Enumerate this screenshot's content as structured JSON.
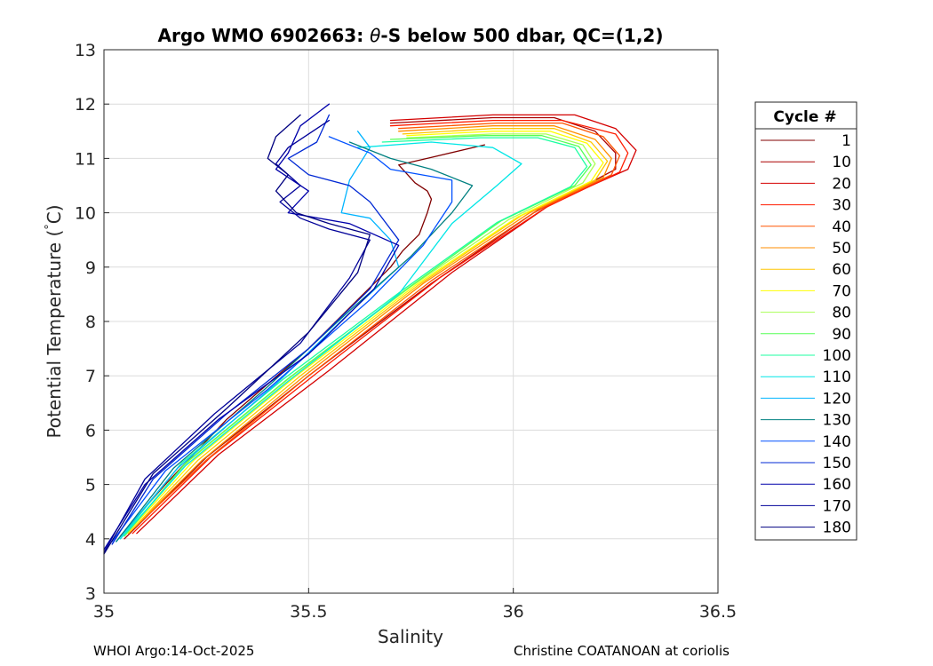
{
  "chart_data": {
    "type": "line",
    "title_prefix": "Argo WMO 6902663: ",
    "title_symbol": "θ",
    "title_suffix": "-S below 500 dbar,  QC=(1,2)",
    "xlabel": "Salinity",
    "ylabel_prefix": "Potential Temperature (",
    "ylabel_degree": "°",
    "ylabel_suffix": "C)",
    "xlim": [
      35,
      36.5
    ],
    "ylim": [
      3,
      13
    ],
    "x_ticks": [
      35,
      35.5,
      36,
      36.5
    ],
    "x_tick_labels": [
      "35",
      "35.5",
      "36",
      "36.5"
    ],
    "y_ticks": [
      3,
      4,
      5,
      6,
      7,
      8,
      9,
      10,
      11,
      12,
      13
    ],
    "y_tick_labels": [
      "3",
      "4",
      "5",
      "6",
      "7",
      "8",
      "9",
      "10",
      "11",
      "12",
      "13"
    ],
    "grid": true,
    "legend": {
      "title": "Cycle #",
      "position": "outside-right",
      "entries": [
        {
          "label": "1",
          "color": "#800000"
        },
        {
          "label": "10",
          "color": "#aa0000"
        },
        {
          "label": "20",
          "color": "#d40000"
        },
        {
          "label": "30",
          "color": "#ff1c00"
        },
        {
          "label": "40",
          "color": "#ff5500"
        },
        {
          "label": "50",
          "color": "#ff8e00"
        },
        {
          "label": "60",
          "color": "#ffc600"
        },
        {
          "label": "70",
          "color": "#ffff00"
        },
        {
          "label": "80",
          "color": "#aaff55"
        },
        {
          "label": "90",
          "color": "#55ff55"
        },
        {
          "label": "100",
          "color": "#1cffa0"
        },
        {
          "label": "110",
          "color": "#00e6e6"
        },
        {
          "label": "120",
          "color": "#00b4ff"
        },
        {
          "label": "130",
          "color": "#008080"
        },
        {
          "label": "140",
          "color": "#0050ff"
        },
        {
          "label": "150",
          "color": "#0028d4"
        },
        {
          "label": "160",
          "color": "#0000aa"
        },
        {
          "label": "170",
          "color": "#000099"
        },
        {
          "label": "180",
          "color": "#000080"
        }
      ]
    },
    "series": [
      {
        "name": "1",
        "color": "#800000",
        "cycle": 1,
        "values": [
          [
            35.93,
            11.25
          ],
          [
            35.8,
            11.02
          ],
          [
            35.72,
            10.88
          ],
          [
            35.76,
            10.55
          ],
          [
            35.79,
            10.4
          ],
          [
            35.8,
            10.25
          ],
          [
            35.79,
            10.0
          ],
          [
            35.77,
            9.6
          ],
          [
            35.73,
            9.3
          ],
          [
            35.7,
            9.0
          ],
          [
            35.62,
            8.4
          ],
          [
            35.5,
            7.5
          ],
          [
            35.3,
            6.2
          ],
          [
            35.15,
            5.0
          ],
          [
            35.04,
            4.05
          ]
        ]
      },
      {
        "name": "10",
        "color": "#aa0000",
        "cycle": 10,
        "values": [
          [
            35.7,
            11.65
          ],
          [
            35.95,
            11.75
          ],
          [
            36.1,
            11.75
          ],
          [
            36.2,
            11.5
          ],
          [
            36.25,
            11.1
          ],
          [
            36.25,
            10.8
          ],
          [
            36.05,
            10.0
          ],
          [
            35.8,
            8.7
          ],
          [
            35.5,
            7.0
          ],
          [
            35.25,
            5.5
          ],
          [
            35.05,
            4.0
          ]
        ]
      },
      {
        "name": "20",
        "color": "#d40000",
        "cycle": 20,
        "values": [
          [
            35.7,
            11.7
          ],
          [
            35.95,
            11.8
          ],
          [
            36.15,
            11.8
          ],
          [
            36.25,
            11.55
          ],
          [
            36.3,
            11.15
          ],
          [
            36.28,
            10.8
          ],
          [
            36.1,
            10.2
          ],
          [
            35.85,
            8.9
          ],
          [
            35.55,
            7.1
          ],
          [
            35.28,
            5.55
          ],
          [
            35.08,
            4.1
          ]
        ]
      },
      {
        "name": "30",
        "color": "#ff1c00",
        "cycle": 30,
        "values": [
          [
            35.7,
            11.6
          ],
          [
            35.95,
            11.7
          ],
          [
            36.12,
            11.7
          ],
          [
            36.25,
            11.45
          ],
          [
            36.28,
            11.1
          ],
          [
            36.26,
            10.75
          ],
          [
            36.08,
            10.1
          ],
          [
            35.82,
            8.8
          ],
          [
            35.52,
            7.05
          ],
          [
            35.26,
            5.5
          ],
          [
            35.07,
            4.1
          ]
        ]
      },
      {
        "name": "40",
        "color": "#ff5500",
        "cycle": 40,
        "values": [
          [
            35.72,
            11.55
          ],
          [
            35.96,
            11.65
          ],
          [
            36.12,
            11.65
          ],
          [
            36.22,
            11.4
          ],
          [
            36.26,
            11.05
          ],
          [
            36.24,
            10.7
          ],
          [
            36.06,
            10.05
          ],
          [
            35.8,
            8.75
          ],
          [
            35.5,
            7.0
          ],
          [
            35.25,
            5.45
          ],
          [
            35.06,
            4.1
          ]
        ]
      },
      {
        "name": "50",
        "color": "#ff8e00",
        "cycle": 50,
        "values": [
          [
            35.72,
            11.5
          ],
          [
            35.95,
            11.6
          ],
          [
            36.1,
            11.6
          ],
          [
            36.2,
            11.35
          ],
          [
            36.24,
            11.0
          ],
          [
            36.22,
            10.65
          ],
          [
            36.04,
            10.0
          ],
          [
            35.78,
            8.7
          ],
          [
            35.49,
            7.0
          ],
          [
            35.24,
            5.45
          ],
          [
            35.06,
            4.1
          ]
        ]
      },
      {
        "name": "60",
        "color": "#ffc600",
        "cycle": 60,
        "values": [
          [
            35.73,
            11.45
          ],
          [
            35.95,
            11.55
          ],
          [
            36.1,
            11.55
          ],
          [
            36.19,
            11.3
          ],
          [
            36.23,
            10.95
          ],
          [
            36.2,
            10.6
          ],
          [
            36.02,
            9.95
          ],
          [
            35.77,
            8.68
          ],
          [
            35.48,
            7.0
          ],
          [
            35.23,
            5.45
          ],
          [
            35.06,
            4.1
          ]
        ]
      },
      {
        "name": "70",
        "color": "#ffff00",
        "cycle": 70,
        "values": [
          [
            35.74,
            11.42
          ],
          [
            35.95,
            11.5
          ],
          [
            36.09,
            11.5
          ],
          [
            36.18,
            11.28
          ],
          [
            36.22,
            10.92
          ],
          [
            36.19,
            10.58
          ],
          [
            36.01,
            9.92
          ],
          [
            35.76,
            8.66
          ],
          [
            35.47,
            7.0
          ],
          [
            35.22,
            5.45
          ],
          [
            35.05,
            4.05
          ]
        ]
      },
      {
        "name": "80",
        "color": "#aaff55",
        "cycle": 80,
        "values": [
          [
            35.74,
            11.38
          ],
          [
            35.95,
            11.45
          ],
          [
            36.08,
            11.45
          ],
          [
            36.17,
            11.25
          ],
          [
            36.2,
            10.9
          ],
          [
            36.17,
            10.55
          ],
          [
            35.99,
            9.88
          ],
          [
            35.75,
            8.64
          ],
          [
            35.46,
            7.0
          ],
          [
            35.21,
            5.45
          ],
          [
            35.05,
            4.05
          ]
        ]
      },
      {
        "name": "90",
        "color": "#55ff55",
        "cycle": 90,
        "values": [
          [
            35.7,
            11.35
          ],
          [
            35.93,
            11.42
          ],
          [
            36.07,
            11.42
          ],
          [
            36.16,
            11.22
          ],
          [
            36.19,
            10.88
          ],
          [
            36.15,
            10.5
          ],
          [
            35.97,
            9.85
          ],
          [
            35.74,
            8.6
          ],
          [
            35.45,
            6.95
          ],
          [
            35.2,
            5.4
          ],
          [
            35.05,
            4.05
          ]
        ]
      },
      {
        "name": "100",
        "color": "#1cffa0",
        "cycle": 100,
        "values": [
          [
            35.68,
            11.3
          ],
          [
            35.92,
            11.38
          ],
          [
            36.06,
            11.38
          ],
          [
            36.15,
            11.2
          ],
          [
            36.18,
            10.85
          ],
          [
            36.14,
            10.48
          ],
          [
            35.96,
            9.82
          ],
          [
            35.73,
            8.58
          ],
          [
            35.44,
            6.95
          ],
          [
            35.19,
            5.4
          ],
          [
            35.04,
            4.0
          ]
        ]
      },
      {
        "name": "110",
        "color": "#00e6e6",
        "cycle": 110,
        "values": [
          [
            35.62,
            11.2
          ],
          [
            35.8,
            11.3
          ],
          [
            35.95,
            11.2
          ],
          [
            36.02,
            10.9
          ],
          [
            35.96,
            10.5
          ],
          [
            35.85,
            9.8
          ],
          [
            35.72,
            8.5
          ],
          [
            35.45,
            6.9
          ],
          [
            35.2,
            5.35
          ],
          [
            35.04,
            4.0
          ]
        ]
      },
      {
        "name": "120",
        "color": "#00b4ff",
        "cycle": 120,
        "values": [
          [
            35.62,
            11.5
          ],
          [
            35.65,
            11.2
          ],
          [
            35.6,
            10.6
          ],
          [
            35.58,
            10.0
          ],
          [
            35.65,
            9.9
          ],
          [
            35.7,
            9.5
          ],
          [
            35.72,
            9.0
          ],
          [
            35.62,
            8.3
          ],
          [
            35.42,
            6.85
          ],
          [
            35.18,
            5.3
          ],
          [
            35.03,
            3.95
          ]
        ]
      },
      {
        "name": "130",
        "color": "#008080",
        "cycle": 130,
        "values": [
          [
            35.6,
            11.3
          ],
          [
            35.7,
            11.0
          ],
          [
            35.8,
            10.8
          ],
          [
            35.9,
            10.5
          ],
          [
            35.85,
            10.0
          ],
          [
            35.75,
            9.2
          ],
          [
            35.6,
            8.2
          ],
          [
            35.4,
            6.8
          ],
          [
            35.17,
            5.3
          ],
          [
            35.03,
            3.95
          ]
        ]
      },
      {
        "name": "140",
        "color": "#0050ff",
        "cycle": 140,
        "values": [
          [
            35.55,
            11.4
          ],
          [
            35.65,
            11.1
          ],
          [
            35.7,
            10.8
          ],
          [
            35.85,
            10.6
          ],
          [
            35.85,
            10.2
          ],
          [
            35.78,
            9.4
          ],
          [
            35.65,
            8.4
          ],
          [
            35.4,
            6.75
          ],
          [
            35.15,
            5.25
          ],
          [
            35.02,
            3.95
          ]
        ]
      },
      {
        "name": "150",
        "color": "#0028d4",
        "cycle": 150,
        "values": [
          [
            35.55,
            11.8
          ],
          [
            35.52,
            11.3
          ],
          [
            35.45,
            11.0
          ],
          [
            35.5,
            10.7
          ],
          [
            35.6,
            10.5
          ],
          [
            35.65,
            10.2
          ],
          [
            35.72,
            9.5
          ],
          [
            35.65,
            8.6
          ],
          [
            35.5,
            7.5
          ],
          [
            35.3,
            6.3
          ],
          [
            35.12,
            5.1
          ],
          [
            35.02,
            3.9
          ]
        ]
      },
      {
        "name": "160",
        "color": "#0000aa",
        "cycle": 160,
        "values": [
          [
            35.55,
            12.0
          ],
          [
            35.48,
            11.6
          ],
          [
            35.45,
            11.1
          ],
          [
            35.42,
            10.8
          ],
          [
            35.5,
            10.4
          ],
          [
            35.45,
            10.0
          ],
          [
            35.6,
            9.8
          ],
          [
            35.72,
            9.4
          ],
          [
            35.66,
            8.6
          ],
          [
            35.5,
            7.4
          ],
          [
            35.28,
            6.2
          ],
          [
            35.1,
            5.0
          ],
          [
            35.0,
            3.8
          ]
        ]
      },
      {
        "name": "170",
        "color": "#000099",
        "cycle": 170,
        "values": [
          [
            35.55,
            11.7
          ],
          [
            35.45,
            11.2
          ],
          [
            35.42,
            10.9
          ],
          [
            35.48,
            10.5
          ],
          [
            35.43,
            10.2
          ],
          [
            35.48,
            9.9
          ],
          [
            35.55,
            9.7
          ],
          [
            35.65,
            9.5
          ],
          [
            35.6,
            8.8
          ],
          [
            35.48,
            7.6
          ],
          [
            35.27,
            6.3
          ],
          [
            35.1,
            5.1
          ],
          [
            35.0,
            3.75
          ]
        ]
      },
      {
        "name": "180",
        "color": "#000080",
        "cycle": 180,
        "values": [
          [
            35.48,
            11.8
          ],
          [
            35.42,
            11.4
          ],
          [
            35.4,
            11.0
          ],
          [
            35.45,
            10.7
          ],
          [
            35.42,
            10.4
          ],
          [
            35.47,
            10.0
          ],
          [
            35.55,
            9.8
          ],
          [
            35.65,
            9.6
          ],
          [
            35.62,
            8.9
          ],
          [
            35.5,
            7.8
          ],
          [
            35.3,
            6.4
          ],
          [
            35.12,
            5.2
          ],
          [
            35.0,
            3.72
          ]
        ]
      }
    ]
  },
  "footer": {
    "left": "WHOI Argo:14-Oct-2025",
    "right": "Christine COATANOAN at coriolis"
  }
}
